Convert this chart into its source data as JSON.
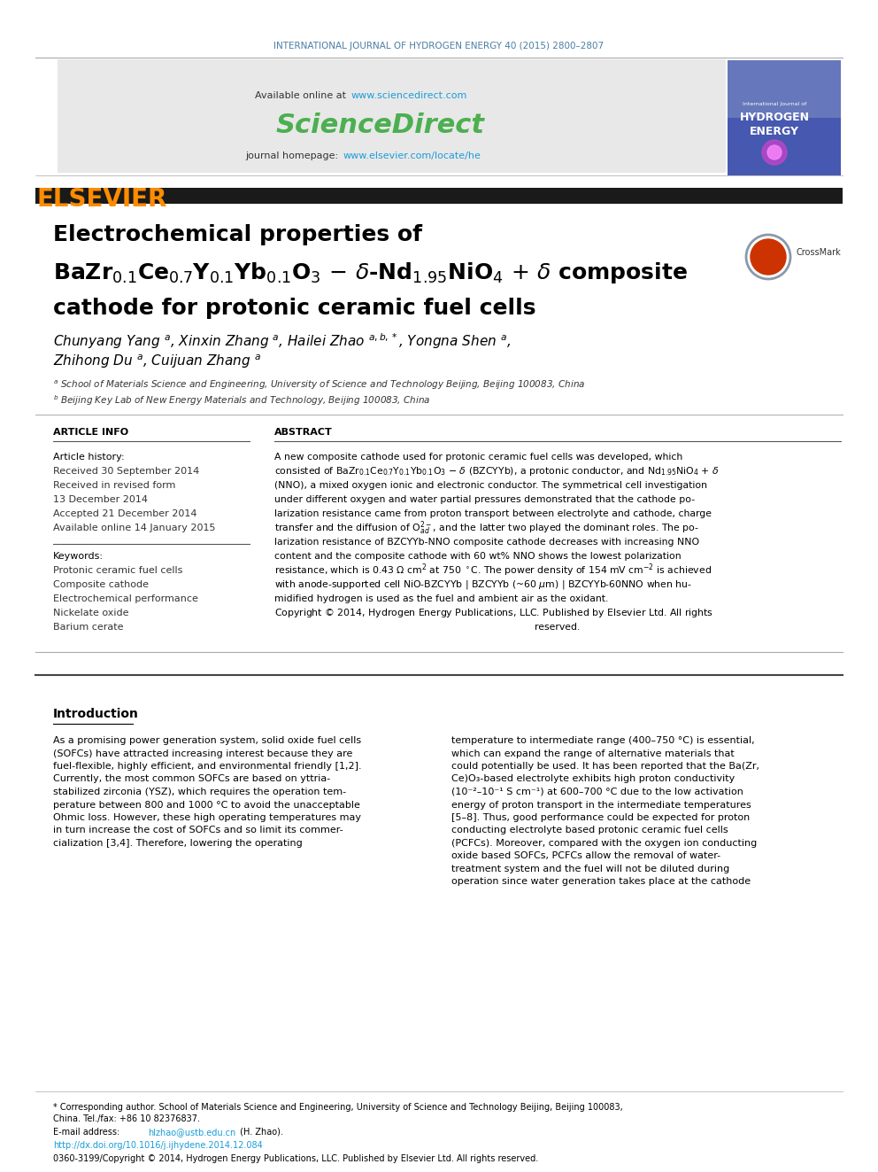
{
  "page_bg": "#ffffff",
  "journal_header": "INTERNATIONAL JOURNAL OF HYDROGEN ENERGY 40 (2015) 2800–2807",
  "journal_header_color": "#4a7fa5",
  "sciencedirect_logo_color": "#4caf50",
  "elsevier_text": "ELSEVIER",
  "elsevier_color": "#ff8c00",
  "title_color": "#000000",
  "section_article_info": "ARTICLE INFO",
  "section_abstract": "ABSTRACT",
  "article_history_label": "Article history:",
  "received_1": "Received 30 September 2014",
  "received_revised": "Received in revised form",
  "revised_date": "13 December 2014",
  "accepted": "Accepted 21 December 2014",
  "available_online": "Available online 14 January 2015",
  "keywords_label": "Keywords:",
  "keyword1": "Protonic ceramic fuel cells",
  "keyword2": "Composite cathode",
  "keyword3": "Electrochemical performance",
  "keyword4": "Nickelate oxide",
  "keyword5": "Barium cerate",
  "intro_heading": "Introduction",
  "footer_doi": "http://dx.doi.org/10.1016/j.ijhydene.2014.12.084",
  "footer_copyright": "0360-3199/Copyright © 2014, Hydrogen Energy Publications, LLC. Published by Elsevier Ltd. All rights reserved.",
  "header_box_color": "#e8e8e8",
  "thin_line_color": "#aaaaaa",
  "thick_line_color": "#1a1a1a"
}
